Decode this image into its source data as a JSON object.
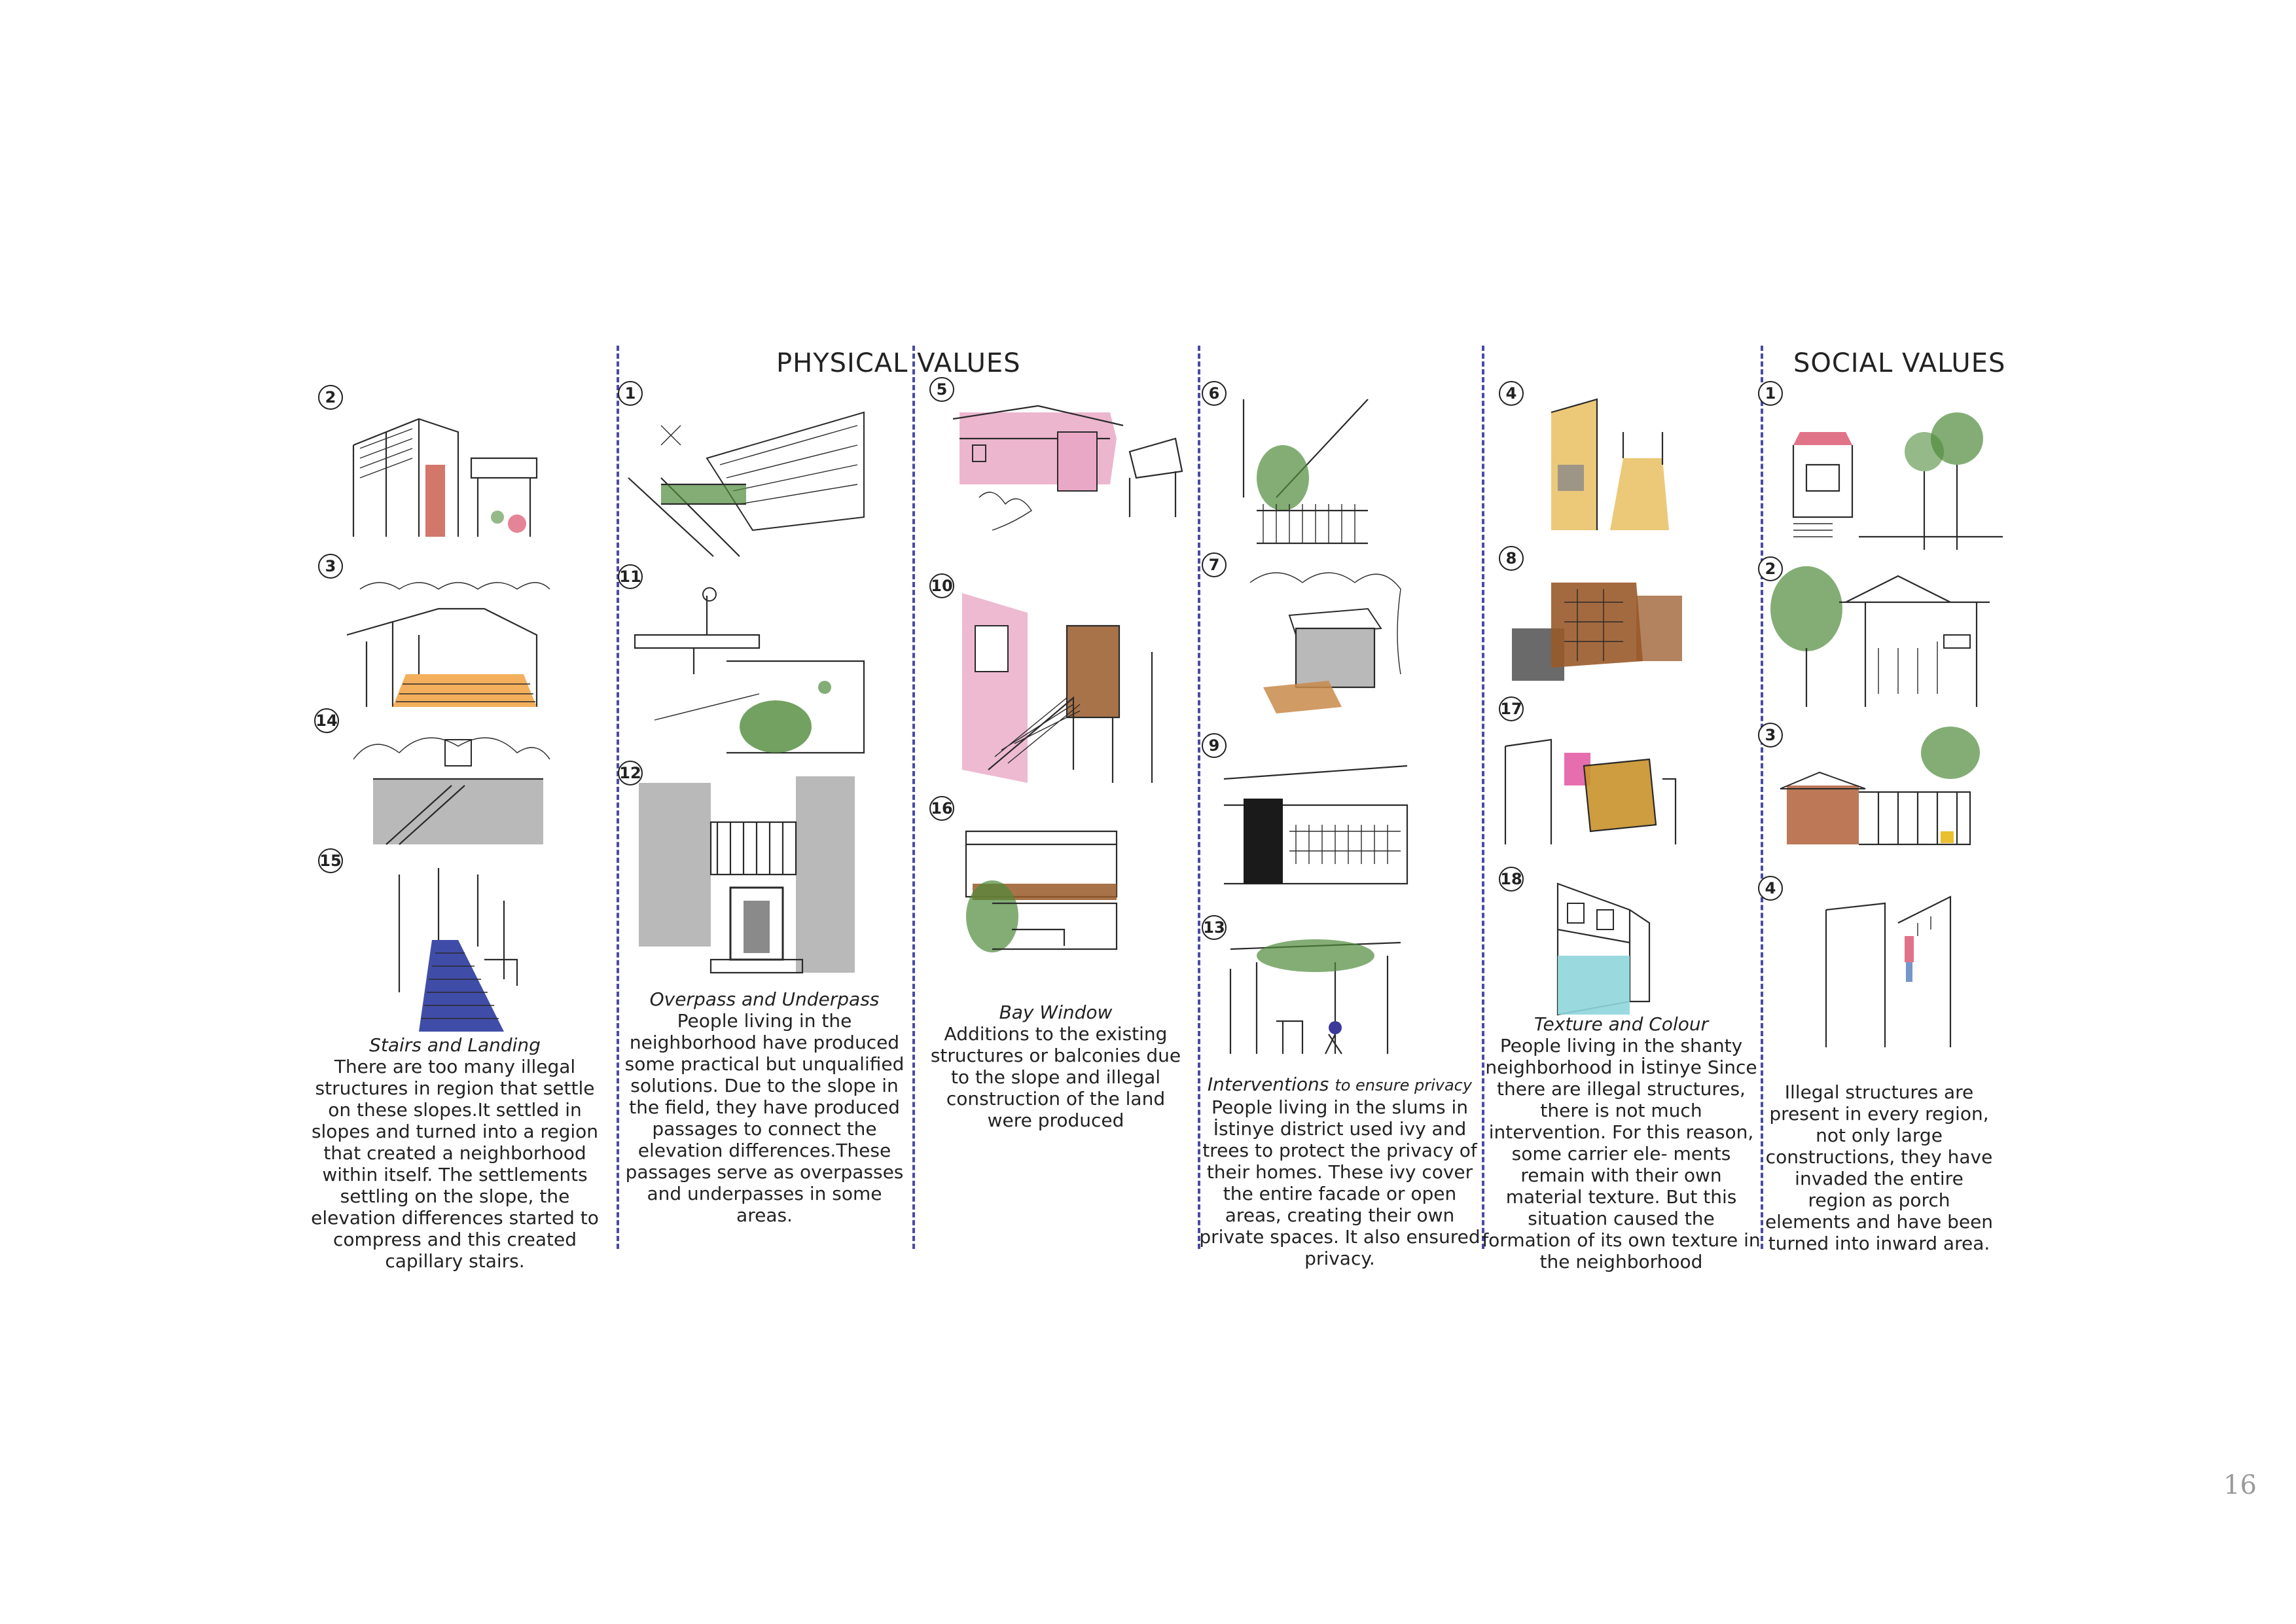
{
  "headings": {
    "physical": "PHYSICAL VALUES",
    "social": "SOCIAL VALUES"
  },
  "columns": {
    "c1": {
      "numbers": [
        "2",
        "3",
        "14",
        "15"
      ],
      "title": "Stairs and Landing",
      "body": "There are too many illegal structures in region that settle on these slopes.It settled in slopes and turned into a region that created a neighborhood within itself. The settlements settling on the slope, the elevation differences started to compress and this created capillary stairs."
    },
    "c2": {
      "numbers": [
        "1",
        "11",
        "12"
      ],
      "title": "Overpass and Underpass",
      "body": "People living in the neighborhood have produced some practical but unqualified solutions. Due to the slope in the field, they have produced passages to connect the elevation differences.These passages serve as overpasses and underpasses in some areas."
    },
    "c3": {
      "numbers": [
        "5",
        "10",
        "16"
      ],
      "title": "Bay Window",
      "body": "Additions to the existing structures or balconies due to the slope and illegal construction of the land were produced"
    },
    "c4": {
      "numbers": [
        "6",
        "7",
        "9",
        "13"
      ],
      "title_main": "Interventions",
      "title_small": "to ensure privacy",
      "body": "People living in the slums in İstinye district used ivy and trees to protect the privacy of their homes. These ivy cover the entire facade or open areas, creating their own private spaces. It also ensured privacy."
    },
    "c5": {
      "numbers": [
        "4",
        "8",
        "17",
        "18"
      ],
      "title": "Texture and Colour",
      "body": "People living in the shanty neighborhood in İstinye Since there are illegal structures, there is not much intervention. For this reason, some carrier ele- ments remain with their own material texture. But this situation caused the formation of its own texture in the neighborhood"
    },
    "c6": {
      "numbers": [
        "1",
        "2",
        "3",
        "4"
      ],
      "body": "Illegal structures are present in every region, not only large constructions, they have invaded the entire region as porch elements and have been turned into inward area."
    }
  },
  "colors": {
    "divider": "#4a4aa8",
    "pink": "#e9a9c6",
    "orange": "#f2a64a",
    "brown": "#9a5a2a",
    "green": "#4f8a3a",
    "blue": "#2b3a9e",
    "ochre": "#e8c060",
    "teal": "#8fd6dc",
    "gray": "#b9b9b9"
  },
  "page_number": "16"
}
